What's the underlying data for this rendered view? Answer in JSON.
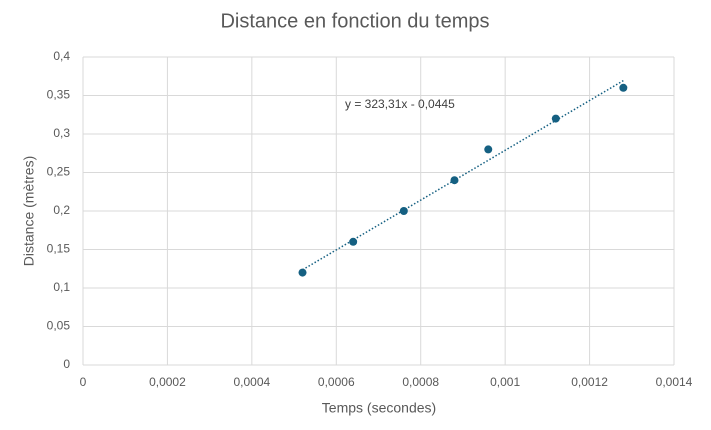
{
  "chart_data": {
    "type": "scatter",
    "title": "Distance en fonction du temps",
    "x_label": "Temps (secondes)",
    "y_label": "Distance (mètres)",
    "series": [
      {
        "name": "Distance",
        "color": "#156082",
        "x": [
          0.00052,
          0.00064,
          0.00076,
          0.00088,
          0.00096,
          0.00112,
          0.00128
        ],
        "values": [
          0.12,
          0.16,
          0.2,
          0.24,
          0.28,
          0.32,
          0.36
        ]
      }
    ],
    "trendline": {
      "slope": 323.31,
      "intercept": -0.0445,
      "label": "y = 323,31x - 0,0445"
    },
    "xlim": [
      0,
      0.0014
    ],
    "xticks": [
      0,
      {
        "value": 0.0002,
        "label": "0,0002"
      },
      {
        "value": 0.0004,
        "label": "0,0004"
      },
      {
        "value": 0.0006,
        "label": "0,0006"
      },
      {
        "value": 0.0008,
        "label": "0,0008"
      },
      {
        "value": 0.001,
        "label": "0,001"
      },
      {
        "value": 0.0012,
        "label": "0,0012"
      },
      {
        "value": 0.0014,
        "label": "0,0014"
      }
    ],
    "ylim": [
      0,
      0.4
    ],
    "yticks": [
      0,
      {
        "value": 0.05,
        "label": "0,05"
      },
      {
        "value": 0.1,
        "label": "0,1"
      },
      {
        "value": 0.15,
        "label": "0,15"
      },
      {
        "value": 0.2,
        "label": "0,2"
      },
      {
        "value": 0.25,
        "label": "0,25"
      },
      {
        "value": 0.3,
        "label": "0,3"
      },
      {
        "value": 0.35,
        "label": "0,35"
      },
      {
        "value": 0.4,
        "label": "0,4"
      }
    ],
    "grid": true
  }
}
